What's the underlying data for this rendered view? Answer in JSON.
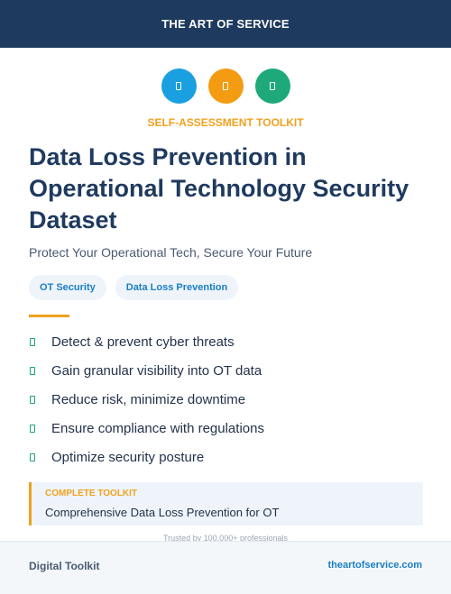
{
  "header": {
    "title": "THE ART OF SERVICE"
  },
  "icons": [
    {
      "name": "document-icon",
      "color": "#1aa0e0"
    },
    {
      "name": "document-icon",
      "color": "#f39c12"
    },
    {
      "name": "document-icon",
      "color": "#1fa97a"
    }
  ],
  "kicker": "SELF-ASSESSMENT TOOLKIT",
  "title": "Data Loss Prevention in Operational Technology Security Dataset",
  "subtitle": "Protect Your Operational Tech, Secure Your Future",
  "tags": [
    "OT Security",
    "Data Loss Prevention"
  ],
  "features": [
    "Detect & prevent cyber threats",
    "Gain granular visibility into OT data",
    "Reduce risk, minimize downtime",
    "Ensure compliance with regulations",
    "Optimize security posture"
  ],
  "callout": {
    "label": "COMPLETE TOOLKIT",
    "text": "Comprehensive Data Loss Prevention for OT"
  },
  "trusted": "Trusted by 100,000+ professionals",
  "footer": {
    "left": "Digital Toolkit",
    "right": "theartofservice.com"
  },
  "colors": {
    "navy": "#1f3a5f",
    "accent_orange": "#f0a11f",
    "link_blue": "#1a7ec4",
    "check_green": "#16a671"
  }
}
